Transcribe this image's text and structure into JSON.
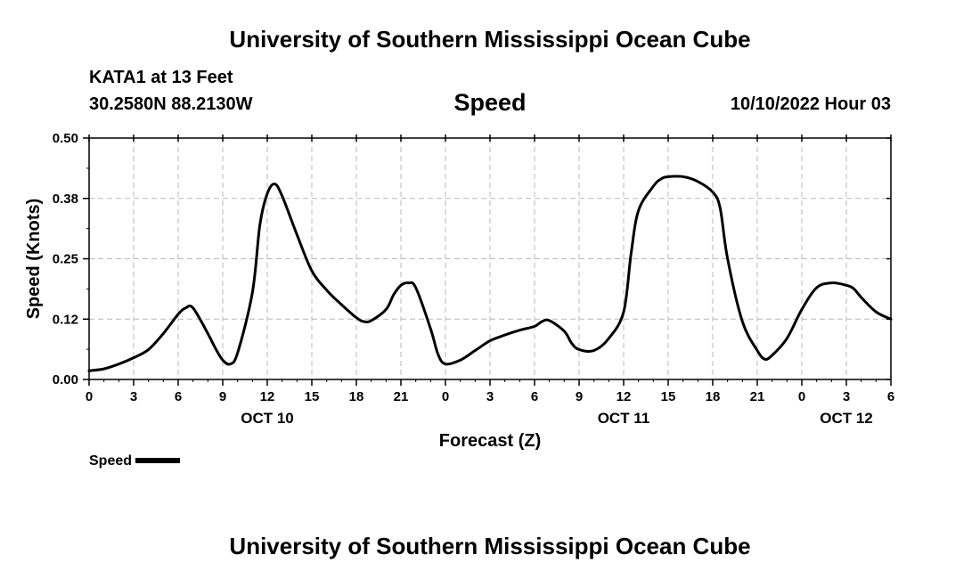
{
  "header": {
    "title": "University of Southern Mississippi Ocean Cube",
    "station": "KATA1 at 13 Feet",
    "coords": "30.2580N  88.2130W",
    "datetime": "10/10/2022 Hour 03"
  },
  "footer": {
    "title": "University of Southern Mississippi Ocean Cube"
  },
  "legend": {
    "label": "Speed"
  },
  "chart_data": {
    "type": "line",
    "title": "Speed",
    "xlabel": "Forecast (Z)",
    "ylabel": "Speed (Knots)",
    "ylim": [
      0,
      0.5
    ],
    "xlim_hours": [
      0,
      54
    ],
    "yticks": [
      0.0,
      0.125,
      0.25,
      0.375,
      0.5
    ],
    "ytick_labels": [
      "0.00",
      "0.12",
      "0.25",
      "0.38",
      "0.50"
    ],
    "xticks_hours": [
      0,
      3,
      6,
      9,
      12,
      15,
      18,
      21,
      24,
      27,
      30,
      33,
      36,
      39,
      42,
      45,
      48,
      51,
      54
    ],
    "xtick_labels": [
      "0",
      "3",
      "6",
      "9",
      "12",
      "15",
      "18",
      "21",
      "0",
      "3",
      "6",
      "9",
      "12",
      "15",
      "18",
      "21",
      "0",
      "3",
      "6"
    ],
    "day_labels": [
      {
        "hour": 12,
        "label": "OCT 10"
      },
      {
        "hour": 36,
        "label": "OCT 11"
      },
      {
        "hour": 51,
        "label": "OCT 12"
      }
    ],
    "grid": true,
    "legend_position": "bottom-left",
    "series": [
      {
        "name": "Speed",
        "x": [
          0,
          1,
          2,
          3,
          4,
          5,
          6,
          6.5,
          7,
          8,
          8.5,
          9,
          9.5,
          10,
          11,
          11.5,
          12,
          12.5,
          13,
          14,
          15,
          16,
          17,
          18,
          18.5,
          19,
          20,
          20.5,
          21,
          21.5,
          22,
          23,
          23.5,
          24,
          25,
          26,
          27,
          28,
          29,
          30,
          30.5,
          31,
          32,
          32.5,
          33,
          34,
          35,
          36,
          36.5,
          37,
          38,
          38.5,
          39,
          40,
          41,
          42,
          42.5,
          43,
          44,
          45,
          45.5,
          46,
          47,
          48,
          49,
          50,
          51,
          51.5,
          52,
          53,
          54
        ],
        "y": [
          0.018,
          0.022,
          0.032,
          0.045,
          0.062,
          0.095,
          0.135,
          0.148,
          0.148,
          0.095,
          0.065,
          0.04,
          0.032,
          0.055,
          0.18,
          0.32,
          0.385,
          0.405,
          0.38,
          0.3,
          0.225,
          0.185,
          0.155,
          0.128,
          0.12,
          0.122,
          0.145,
          0.175,
          0.195,
          0.2,
          0.19,
          0.105,
          0.052,
          0.032,
          0.04,
          0.06,
          0.08,
          0.092,
          0.102,
          0.11,
          0.12,
          0.122,
          0.1,
          0.075,
          0.062,
          0.06,
          0.085,
          0.14,
          0.26,
          0.35,
          0.4,
          0.415,
          0.42,
          0.42,
          0.41,
          0.388,
          0.355,
          0.25,
          0.12,
          0.06,
          0.042,
          0.05,
          0.085,
          0.145,
          0.19,
          0.2,
          0.195,
          0.188,
          0.17,
          0.14,
          0.125
        ]
      }
    ]
  }
}
